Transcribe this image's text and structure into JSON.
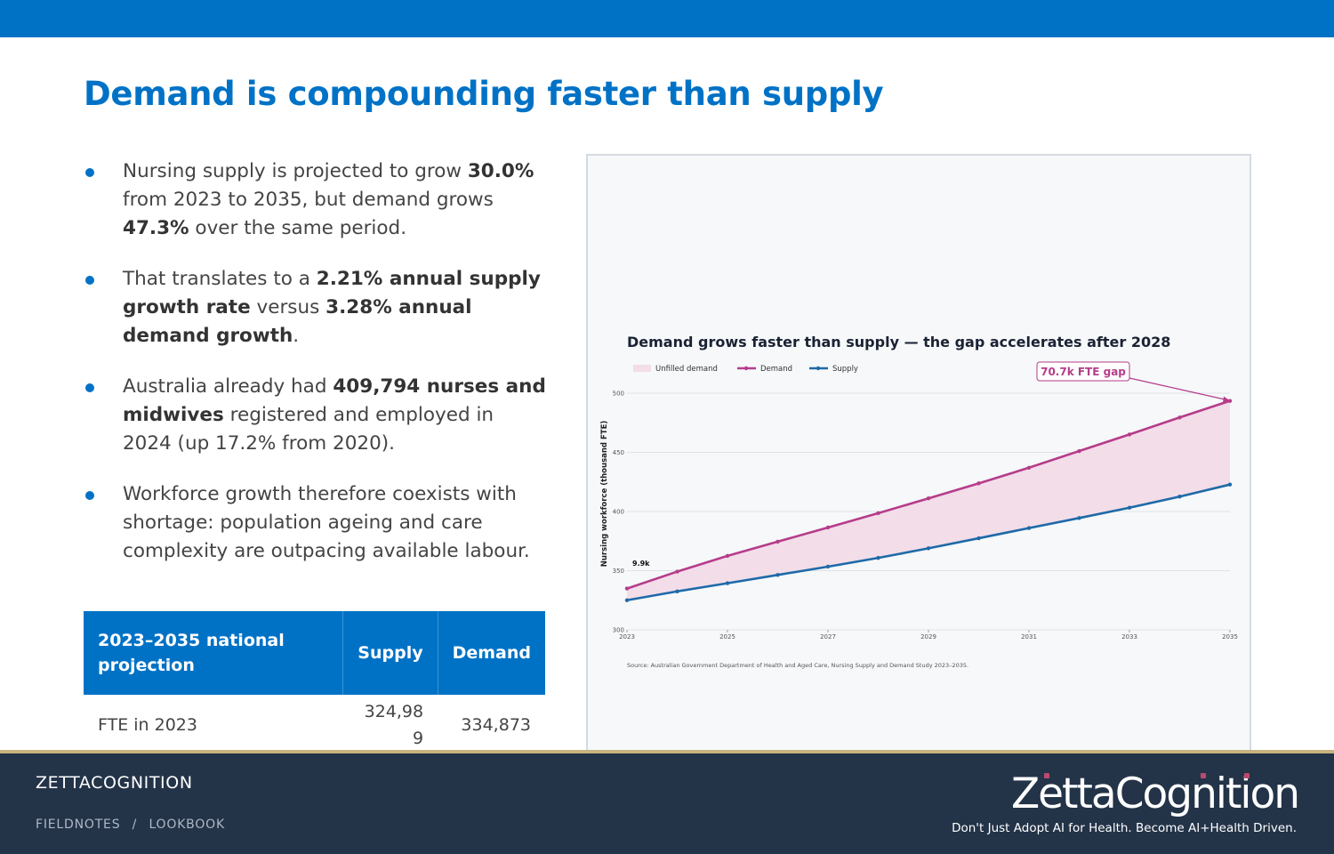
{
  "slide": {
    "title": "Demand is compounding faster than supply"
  },
  "bullets": [
    {
      "parts": [
        [
          "Nursing supply is projected to grow ",
          false
        ],
        [
          "30.0%",
          true
        ],
        [
          " from 2023 to 2035, but demand grows ",
          false
        ],
        [
          "47.3%",
          true
        ],
        [
          " over the same period.",
          false
        ]
      ]
    },
    {
      "parts": [
        [
          "That translates to a ",
          false
        ],
        [
          "2.21% annual supply growth rate",
          true
        ],
        [
          " versus ",
          false
        ],
        [
          "3.28% annual demand growth",
          true
        ],
        [
          ".",
          false
        ]
      ]
    },
    {
      "parts": [
        [
          "Australia already had ",
          false
        ],
        [
          "409,794 nurses and midwives",
          true
        ],
        [
          " registered and employed in 2024 (up 17.2% from 2020).",
          false
        ]
      ]
    },
    {
      "parts": [
        [
          "Workforce growth therefore coexists with shortage: population ageing and care complexity are outpacing available labour.",
          false
        ]
      ]
    }
  ],
  "table": {
    "headers": [
      "2023–2035 national projection",
      "Supply",
      "Demand"
    ],
    "rows": [
      [
        "FTE in 2023",
        "324,989",
        "334,873"
      ]
    ]
  },
  "chart_data": {
    "type": "line",
    "title": "Demand grows faster than supply — the gap accelerates after 2028",
    "ylabel": "Nursing workforce (thousand FTE)",
    "xlabel": "",
    "x": [
      2023,
      2024,
      2025,
      2026,
      2027,
      2028,
      2029,
      2030,
      2031,
      2032,
      2033,
      2034,
      2035
    ],
    "xticks": [
      "2023",
      "2025",
      "2027",
      "2029",
      "2031",
      "2033",
      "2035"
    ],
    "yticks": [
      "300",
      "350",
      "400",
      "450",
      "500"
    ],
    "ylim": [
      300,
      500
    ],
    "series": [
      {
        "name": "Demand",
        "color": "#b63c8a",
        "values": [
          334.9,
          349.2,
          362.5,
          374.5,
          386.5,
          398.6,
          411.1,
          423.8,
          437.0,
          451.1,
          465.1,
          479.5,
          493.5
        ]
      },
      {
        "name": "Supply",
        "color": "#1f6aa8",
        "values": [
          325.0,
          332.5,
          339.4,
          346.4,
          353.4,
          360.8,
          368.9,
          377.4,
          386.0,
          394.5,
          403.2,
          412.6,
          422.8
        ]
      }
    ],
    "fill": {
      "name": "Unfilled demand",
      "color": "#f2dde9"
    },
    "legend": [
      "Unfilled demand",
      "Demand",
      "Supply"
    ],
    "legend_position": "top-left",
    "annotations": {
      "start_gap": "9.9k",
      "end_gap": "70.7k FTE gap"
    },
    "source": "Source: Australian Government Department of Health and Aged Care, Nursing Supply and Demand Study 2023–2035.",
    "grid": true
  },
  "footer": {
    "brand": "ZETTACOGNITION",
    "crumb_a": "FIELDNOTES",
    "crumb_sep": "/",
    "crumb_b": "LOOKBOOK",
    "logo_text": "ZettaCognition",
    "logo_tagline": "Don't Just Adopt AI for Health. Become AI+Health Driven."
  }
}
